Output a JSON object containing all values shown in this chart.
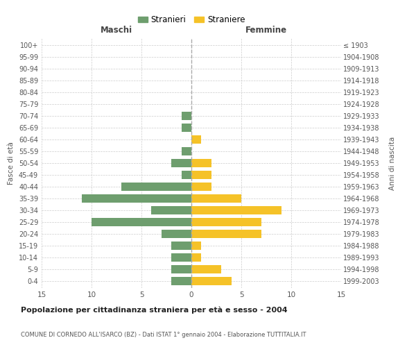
{
  "age_groups": [
    "0-4",
    "5-9",
    "10-14",
    "15-19",
    "20-24",
    "25-29",
    "30-34",
    "35-39",
    "40-44",
    "45-49",
    "50-54",
    "55-59",
    "60-64",
    "65-69",
    "70-74",
    "75-79",
    "80-84",
    "85-89",
    "90-94",
    "95-99",
    "100+"
  ],
  "birth_years": [
    "1999-2003",
    "1994-1998",
    "1989-1993",
    "1984-1988",
    "1979-1983",
    "1974-1978",
    "1969-1973",
    "1964-1968",
    "1959-1963",
    "1954-1958",
    "1949-1953",
    "1944-1948",
    "1939-1943",
    "1934-1938",
    "1929-1933",
    "1924-1928",
    "1919-1923",
    "1914-1918",
    "1909-1913",
    "1904-1908",
    "≤ 1903"
  ],
  "maschi": [
    2,
    2,
    2,
    2,
    3,
    10,
    4,
    11,
    7,
    1,
    2,
    1,
    0,
    1,
    1,
    0,
    0,
    0,
    0,
    0,
    0
  ],
  "femmine": [
    4,
    3,
    1,
    1,
    7,
    7,
    9,
    5,
    2,
    2,
    2,
    0,
    1,
    0,
    0,
    0,
    0,
    0,
    0,
    0,
    0
  ],
  "male_color": "#6e9e6e",
  "female_color": "#f5c228",
  "background_color": "#ffffff",
  "grid_color": "#cccccc",
  "title": "Popolazione per cittadinanza straniera per età e sesso - 2004",
  "subtitle": "COMUNE DI CORNEDO ALL'ISARCO (BZ) - Dati ISTAT 1° gennaio 2004 - Elaborazione TUTTITALIA.IT",
  "xlabel_left": "Maschi",
  "xlabel_right": "Femmine",
  "ylabel_left": "Fasce di età",
  "ylabel_right": "Anni di nascita",
  "legend_stranieri": "Stranieri",
  "legend_straniere": "Straniere",
  "xlim": 15
}
